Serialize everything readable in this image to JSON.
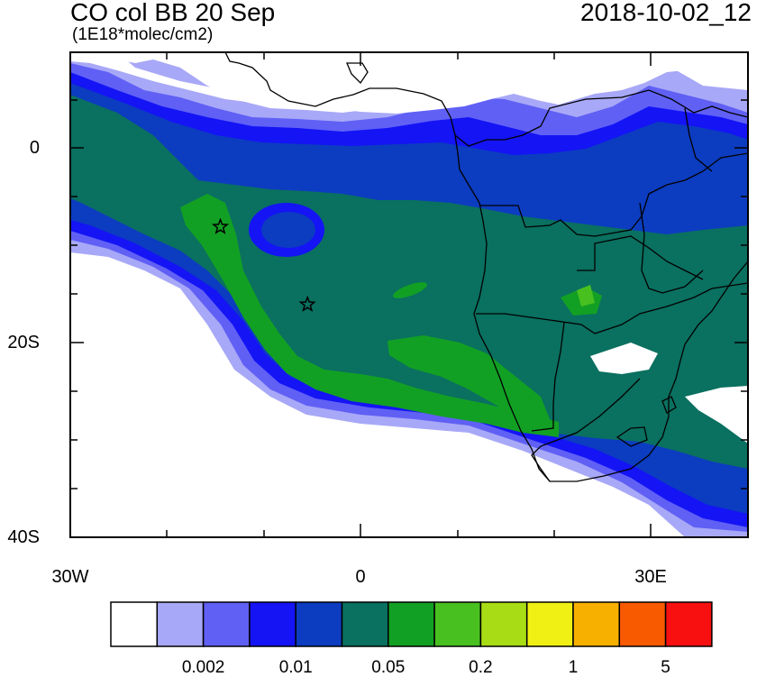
{
  "title_left": "CO col BB 20 Sep",
  "title_right": "2018-10-02_12",
  "units": "(1E18*molec/cm2)",
  "axes": {
    "lat_labels": [
      "0",
      "20S",
      "40S"
    ],
    "lon_labels": [
      "30W",
      "0",
      "30E"
    ]
  },
  "markers": [
    {
      "name": "star-marker-1",
      "lon": -14.5,
      "lat": -8.0
    },
    {
      "name": "star-marker-2",
      "lon": -5.5,
      "lat": -16.0
    }
  ],
  "colorbar": {
    "colors": [
      "#ffffff",
      "#a8a8f8",
      "#6060f5",
      "#1414f5",
      "#0c3cc0",
      "#0a7060",
      "#12a024",
      "#48c020",
      "#a8dc14",
      "#f0f014",
      "#f8b000",
      "#f85a00",
      "#f81010"
    ],
    "labels": [
      "0.002",
      "0.01",
      "0.05",
      "0.2",
      "1",
      "5"
    ]
  }
}
